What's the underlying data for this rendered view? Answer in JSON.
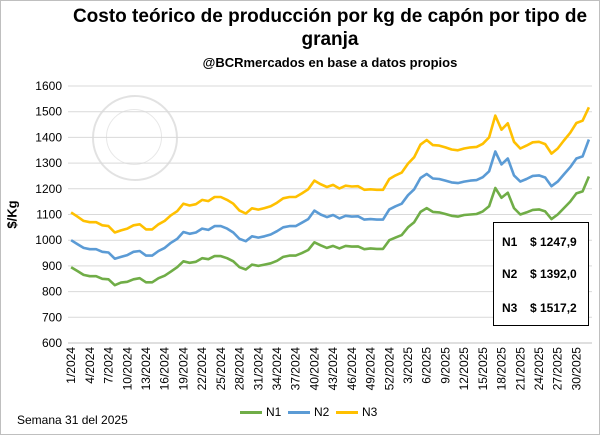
{
  "chart_data": {
    "type": "line",
    "title_line1": "Costo teórico de producción por kg de capón por tipo de",
    "title_line2": "granja",
    "subtitle": "@BCRmercados en base a datos propios",
    "ylabel": "$/Kg",
    "ylim": [
      600,
      1600
    ],
    "yticks": [
      600,
      700,
      800,
      900,
      1000,
      1100,
      1200,
      1300,
      1400,
      1500,
      1600
    ],
    "grid": true,
    "legend_position": "bottom",
    "x_tick_labels": [
      "1/2024",
      "4/2024",
      "7/2024",
      "10/2024",
      "13/2024",
      "16/2024",
      "19/2024",
      "22/2024",
      "25/2024",
      "28/2024",
      "31/2024",
      "34/2024",
      "37/2024",
      "40/2024",
      "43/2024",
      "46/2024",
      "49/2024",
      "52/2024",
      "3/2025",
      "6/2025",
      "9/2025",
      "12/2025",
      "15/2025",
      "18/2025",
      "21/2025",
      "24/2025",
      "27/2025",
      "30/2025"
    ],
    "series": [
      {
        "name": "N1",
        "color": "#70ad47",
        "values": [
          895,
          880,
          865,
          860,
          860,
          850,
          848,
          825,
          835,
          838,
          848,
          852,
          836,
          836,
          852,
          862,
          878,
          895,
          918,
          912,
          916,
          930,
          926,
          938,
          938,
          930,
          918,
          895,
          886,
          905,
          900,
          905,
          910,
          920,
          935,
          940,
          940,
          950,
          962,
          992,
          980,
          970,
          978,
          968,
          978,
          975,
          976,
          965,
          968,
          966,
          966,
          1000,
          1010,
          1020,
          1050,
          1070,
          1110,
          1125,
          1110,
          1108,
          1102,
          1095,
          1092,
          1098,
          1100,
          1102,
          1112,
          1132,
          1203,
          1165,
          1185,
          1125,
          1100,
          1108,
          1118,
          1120,
          1112,
          1082,
          1100,
          1125,
          1150,
          1182,
          1190,
          1248
        ]
      },
      {
        "name": "N2",
        "color": "#5b9bd5",
        "values": [
          1000,
          985,
          970,
          965,
          965,
          955,
          952,
          928,
          935,
          942,
          955,
          958,
          940,
          940,
          958,
          970,
          990,
          1005,
          1032,
          1025,
          1030,
          1045,
          1040,
          1055,
          1055,
          1045,
          1030,
          1005,
          996,
          1015,
          1010,
          1015,
          1022,
          1035,
          1050,
          1055,
          1055,
          1068,
          1082,
          1115,
          1100,
          1090,
          1098,
          1085,
          1095,
          1092,
          1093,
          1080,
          1082,
          1080,
          1080,
          1120,
          1132,
          1142,
          1175,
          1198,
          1242,
          1258,
          1240,
          1238,
          1232,
          1225,
          1222,
          1228,
          1232,
          1234,
          1245,
          1268,
          1345,
          1295,
          1318,
          1252,
          1228,
          1238,
          1250,
          1252,
          1244,
          1210,
          1228,
          1256,
          1284,
          1318,
          1326,
          1392
        ]
      },
      {
        "name": "N3",
        "color": "#ffc000",
        "values": [
          1108,
          1092,
          1075,
          1070,
          1070,
          1058,
          1055,
          1030,
          1038,
          1045,
          1058,
          1062,
          1042,
          1042,
          1062,
          1075,
          1097,
          1113,
          1142,
          1135,
          1140,
          1157,
          1152,
          1168,
          1168,
          1157,
          1142,
          1115,
          1104,
          1124,
          1119,
          1125,
          1132,
          1146,
          1163,
          1168,
          1168,
          1182,
          1198,
          1232,
          1218,
          1207,
          1215,
          1201,
          1212,
          1209,
          1210,
          1196,
          1198,
          1196,
          1196,
          1238,
          1252,
          1263,
          1298,
          1323,
          1372,
          1390,
          1370,
          1368,
          1361,
          1353,
          1350,
          1357,
          1361,
          1363,
          1375,
          1400,
          1485,
          1430,
          1455,
          1383,
          1357,
          1368,
          1381,
          1383,
          1374,
          1337,
          1357,
          1388,
          1418,
          1456,
          1465,
          1517
        ]
      }
    ]
  },
  "value_box": [
    {
      "label": "N1",
      "value": "$ 1247,9"
    },
    {
      "label": "N2",
      "value": "$ 1392,0"
    },
    {
      "label": "N3",
      "value": "$ 1517,2"
    }
  ],
  "footer": "Semana 31 del 2025"
}
